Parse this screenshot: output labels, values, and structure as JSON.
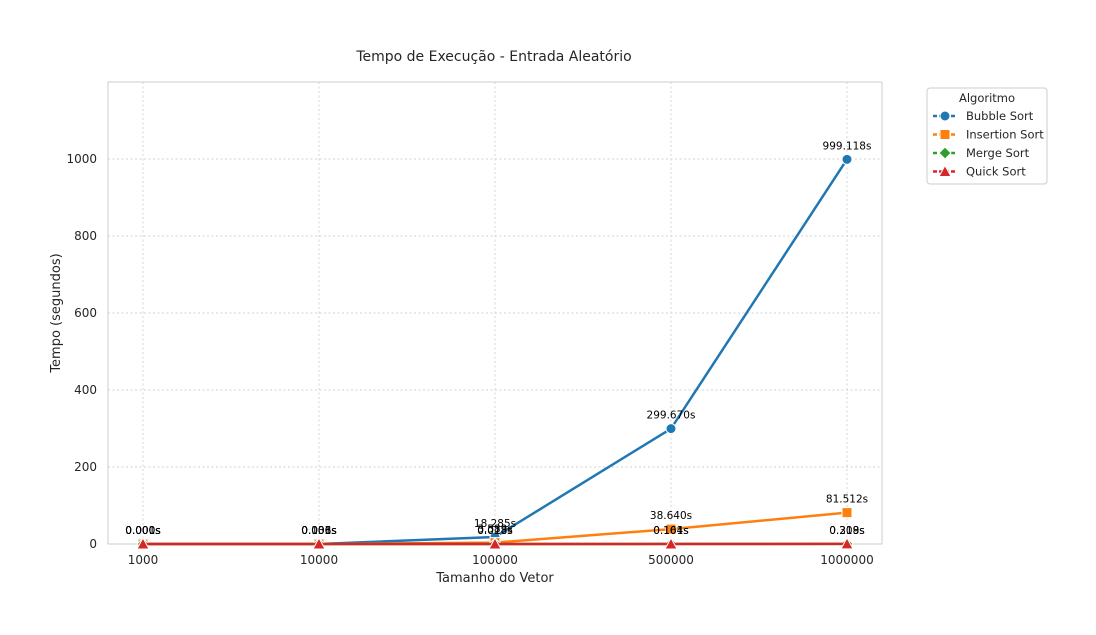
{
  "chart_data": {
    "type": "line",
    "title": "Tempo de Execução - Entrada Aleatório",
    "xlabel": "Tamanho do Vetor",
    "ylabel": "Tempo (segundos)",
    "categories": [
      "1000",
      "10000",
      "100000",
      "500000",
      "1000000"
    ],
    "ylim": [
      0,
      1200
    ],
    "yticks": [
      0,
      200,
      400,
      600,
      800,
      1000
    ],
    "grid": true,
    "legend": {
      "title": "Algoritmo",
      "placement": "outside-top-right"
    },
    "series": [
      {
        "name": "Bubble Sort",
        "color": "#1f77b4",
        "marker": "circle",
        "values": [
          0.001,
          0.106,
          18.285,
          299.67,
          999.118
        ],
        "labels": [
          "0.001s",
          "0.106s",
          "18.285s",
          "299.670s",
          "999.118s"
        ]
      },
      {
        "name": "Insertion Sort",
        "color": "#ff7f0e",
        "marker": "square",
        "values": [
          0.0004,
          0.036,
          3.583,
          38.64,
          81.512
        ],
        "labels": [
          "0.000s",
          "0.036s",
          "3.583s",
          "38.640s",
          "81.512s"
        ]
      },
      {
        "name": "Merge Sort",
        "color": "#2ca02c",
        "marker": "diamond",
        "values": [
          0.0003,
          0.003,
          0.028,
          0.164,
          0.309
        ],
        "labels": [
          "0.000s",
          "0.003s",
          "0.028s",
          "0.164s",
          "0.309s"
        ]
      },
      {
        "name": "Quick Sort",
        "color": "#d62728",
        "marker": "triangle",
        "values": [
          0.0001,
          0.001,
          0.018,
          0.101,
          0.218
        ],
        "labels": [
          "0.000s",
          "0.001s",
          "0.018s",
          "0.101s",
          "0.218s"
        ]
      }
    ]
  }
}
